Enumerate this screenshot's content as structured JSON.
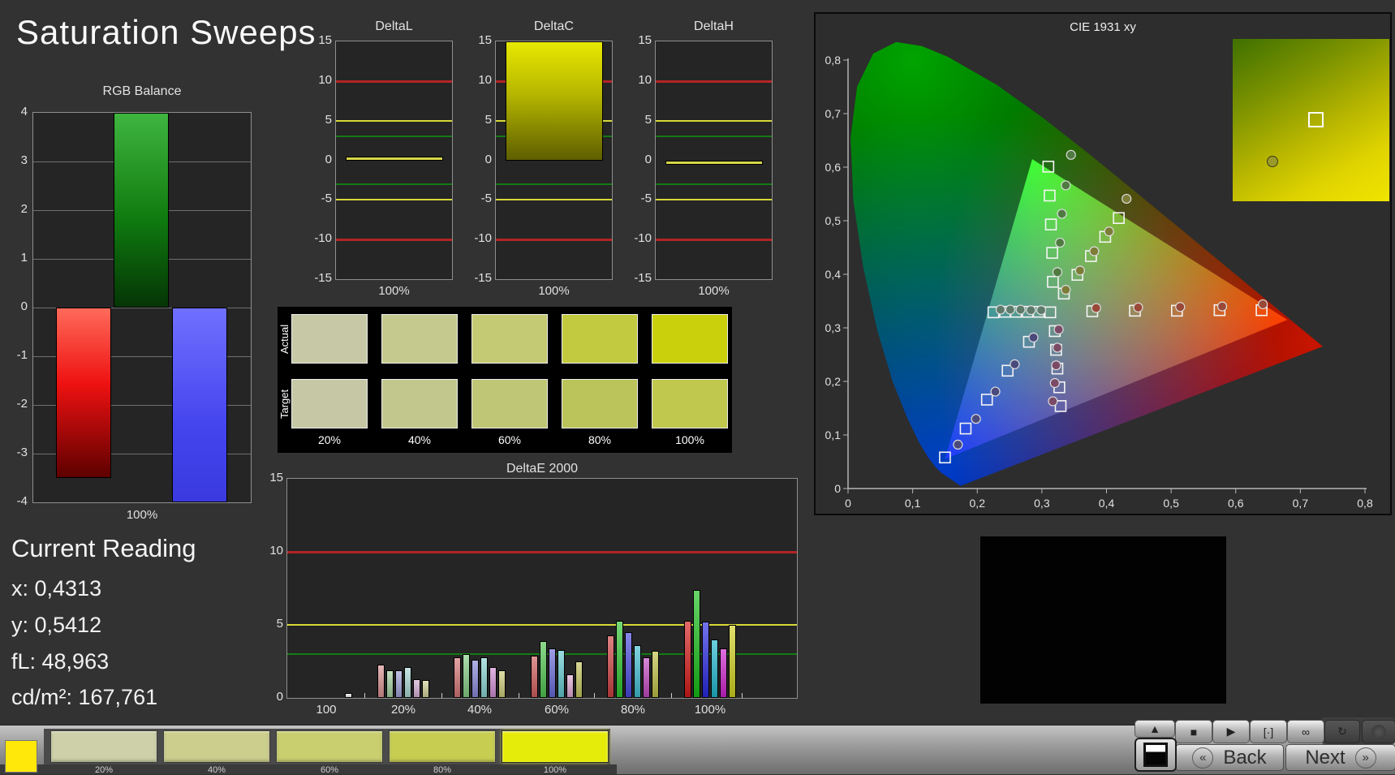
{
  "window": {
    "title": "Saturation Sweeps"
  },
  "current_reading": {
    "heading": "Current Reading",
    "lines": [
      "x: 0,4313",
      "y: 0,5412",
      "fL: 48,963",
      "cd/m²: 167,761"
    ]
  },
  "rgb_balance": {
    "type": "bar",
    "title": "RGB Balance",
    "categories": [
      "Red",
      "Green",
      "Blue"
    ],
    "values": [
      -3.5,
      4.0,
      -4.0
    ],
    "bar_colors": [
      "red",
      "green",
      "blue"
    ],
    "ylim": [
      -4,
      4
    ],
    "yticks": [
      4,
      3,
      2,
      1,
      0,
      -1,
      -2,
      -3,
      -4
    ],
    "xlabel": "100%"
  },
  "delta_charts": {
    "ylim": [
      -15,
      15
    ],
    "yticks": [
      15,
      10,
      5,
      0,
      -5,
      -10,
      -15
    ],
    "limits": {
      "red": 10,
      "yellow": 5,
      "green": 3
    },
    "xlabel": "100%",
    "charts": [
      {
        "title": "DeltaL",
        "value": 0.5
      },
      {
        "title": "DeltaC",
        "value": 15.0,
        "clipped": true
      },
      {
        "title": "DeltaH",
        "value": -0.4
      }
    ]
  },
  "swatch_panel": {
    "rows": [
      {
        "label": "Actual",
        "colors": [
          "#c7c9a6",
          "#c5c98d",
          "#c4ca73",
          "#c2ca3f",
          "#cbd00c"
        ]
      },
      {
        "label": "Target",
        "colors": [
          "#c6c8a5",
          "#c2c78e",
          "#bfc675",
          "#bac45a",
          "#c1c84e"
        ]
      }
    ],
    "col_labels": [
      "20%",
      "40%",
      "60%",
      "80%",
      "100%"
    ]
  },
  "deltae2000": {
    "type": "bar",
    "title": "DeltaE 2000",
    "ylim": [
      0,
      15
    ],
    "yticks": [
      15,
      10,
      5,
      0
    ],
    "limits": {
      "red": 10,
      "yellow": 5,
      "green": 3
    },
    "groups": [
      {
        "label": "100",
        "values": [
          0.35
        ],
        "colors": [
          "#f0f0f0"
        ]
      },
      {
        "label": "20%",
        "values": [
          2.3,
          1.9,
          1.9,
          2.1,
          1.3,
          1.2
        ],
        "colors": [
          "#d89090",
          "#a2cf9e",
          "#9fa0d6",
          "#a9d6d2",
          "#d4aed4",
          "#cfcf96"
        ]
      },
      {
        "label": "40%",
        "values": [
          2.8,
          3.0,
          2.6,
          2.8,
          2.1,
          1.9
        ],
        "colors": [
          "#d47474",
          "#83cc83",
          "#8787d8",
          "#8ad2d2",
          "#d08cd0",
          "#cbcb79"
        ]
      },
      {
        "label": "60%",
        "values": [
          2.9,
          3.9,
          3.4,
          3.3,
          1.6,
          2.5
        ],
        "colors": [
          "#d05c5c",
          "#4fc44f",
          "#6868d8",
          "#62c8cf",
          "#e0a8d4",
          "#c2c25e"
        ]
      },
      {
        "label": "80%",
        "values": [
          4.3,
          5.3,
          4.5,
          3.6,
          2.8,
          3.2
        ],
        "colors": [
          "#cc4040",
          "#2ec42e",
          "#4848dc",
          "#40bcd0",
          "#c048c0",
          "#bebe46"
        ]
      },
      {
        "label": "100%",
        "values": [
          5.3,
          7.4,
          5.2,
          4.0,
          3.4,
          5.0
        ],
        "colors": [
          "#d41a1a",
          "#17bd17",
          "#2828e0",
          "#1fb6cc",
          "#cc22cc",
          "#cfcf1f"
        ]
      }
    ]
  },
  "cie": {
    "type": "scatter",
    "title": "CIE 1931 xy",
    "xlim": [
      0,
      0.8
    ],
    "ylim": [
      0,
      0.8
    ],
    "xticks": [
      "0",
      "0,1",
      "0,2",
      "0,3",
      "0,4",
      "0,5",
      "0,6",
      "0,7",
      "0,8"
    ],
    "yticks": [
      "0,8",
      "0,7",
      "0,6",
      "0,5",
      "0,4",
      "0,3",
      "0,2",
      "0,1",
      "0"
    ],
    "white_target": [
      0.313,
      0.329
    ],
    "gamut_triangle": [
      [
        0.68,
        0.315
      ],
      [
        0.285,
        0.615
      ],
      [
        0.15,
        0.055
      ]
    ],
    "sweeps": [
      {
        "name": "green",
        "dot_color": "#4f7a40",
        "targets": [
          [
            0.31,
            0.601
          ],
          [
            0.312,
            0.547
          ],
          [
            0.314,
            0.493
          ],
          [
            0.316,
            0.44
          ],
          [
            0.317,
            0.386
          ]
        ],
        "measured": [
          [
            0.345,
            0.623
          ],
          [
            0.337,
            0.566
          ],
          [
            0.331,
            0.513
          ],
          [
            0.328,
            0.459
          ],
          [
            0.324,
            0.404
          ]
        ]
      },
      {
        "name": "yellow",
        "dot_color": "#7d7d38",
        "targets": [
          [
            0.334,
            0.364
          ],
          [
            0.355,
            0.399
          ],
          [
            0.376,
            0.434
          ],
          [
            0.398,
            0.47
          ],
          [
            0.419,
            0.505
          ]
        ],
        "measured": [
          [
            0.337,
            0.371
          ],
          [
            0.359,
            0.407
          ],
          [
            0.381,
            0.443
          ],
          [
            0.404,
            0.48
          ],
          [
            0.431,
            0.541
          ]
        ]
      },
      {
        "name": "red",
        "dot_color": "#9a4838",
        "targets": [
          [
            0.378,
            0.331
          ],
          [
            0.444,
            0.332
          ],
          [
            0.509,
            0.332
          ],
          [
            0.575,
            0.333
          ],
          [
            0.64,
            0.333
          ]
        ],
        "measured": [
          [
            0.384,
            0.337
          ],
          [
            0.449,
            0.338
          ],
          [
            0.514,
            0.339
          ],
          [
            0.579,
            0.34
          ],
          [
            0.642,
            0.344
          ]
        ]
      },
      {
        "name": "cyan",
        "dot_color": "#5d7a6a",
        "targets": [
          [
            0.295,
            0.33
          ],
          [
            0.278,
            0.33
          ],
          [
            0.26,
            0.33
          ],
          [
            0.243,
            0.33
          ],
          [
            0.225,
            0.329
          ]
        ],
        "measured": [
          [
            0.299,
            0.333
          ],
          [
            0.283,
            0.333
          ],
          [
            0.267,
            0.334
          ],
          [
            0.251,
            0.334
          ],
          [
            0.236,
            0.334
          ]
        ]
      },
      {
        "name": "magenta",
        "dot_color": "#7a4a66",
        "targets": [
          [
            0.32,
            0.294
          ],
          [
            0.322,
            0.259
          ],
          [
            0.324,
            0.224
          ],
          [
            0.327,
            0.189
          ],
          [
            0.329,
            0.154
          ]
        ],
        "measured": [
          [
            0.326,
            0.297
          ],
          [
            0.324,
            0.263
          ],
          [
            0.322,
            0.23
          ],
          [
            0.32,
            0.197
          ],
          [
            0.317,
            0.163
          ]
        ]
      },
      {
        "name": "blue",
        "dot_color": "#4a4a7d",
        "targets": [
          [
            0.28,
            0.274
          ],
          [
            0.247,
            0.22
          ],
          [
            0.215,
            0.166
          ],
          [
            0.182,
            0.112
          ],
          [
            0.15,
            0.058
          ]
        ],
        "measured": [
          [
            0.287,
            0.282
          ],
          [
            0.258,
            0.232
          ],
          [
            0.228,
            0.181
          ],
          [
            0.198,
            0.13
          ],
          [
            0.17,
            0.082
          ]
        ]
      }
    ],
    "inset": {
      "square_pos": [
        0.48,
        0.45
      ],
      "dot_pos": [
        0.22,
        0.72
      ]
    }
  },
  "bottom_bar": {
    "sample_color": "#ffe80a",
    "swatches": [
      {
        "label": "20%",
        "color": "#cdd0a8",
        "selected": false
      },
      {
        "label": "40%",
        "color": "#cbce8c",
        "selected": false
      },
      {
        "label": "60%",
        "color": "#c9ce6f",
        "selected": false
      },
      {
        "label": "80%",
        "color": "#c7cd50",
        "selected": false
      },
      {
        "label": "100%",
        "color": "#e6ec09",
        "selected": true
      }
    ],
    "transport": [
      {
        "name": "collapse",
        "glyph": "▲",
        "dark": false
      },
      {
        "name": "stop",
        "glyph": "■",
        "dark": false
      },
      {
        "name": "play",
        "glyph": "▶",
        "dark": false
      },
      {
        "name": "step",
        "glyph": "[·]",
        "dark": false
      },
      {
        "name": "loop",
        "glyph": "∞",
        "dark": false
      },
      {
        "name": "refresh",
        "glyph": "↻",
        "dark": true
      },
      {
        "name": "record",
        "glyph": "",
        "dark": true
      }
    ],
    "back_label": "Back",
    "next_label": "Next",
    "back_glyph": "«",
    "next_glyph": "»"
  }
}
